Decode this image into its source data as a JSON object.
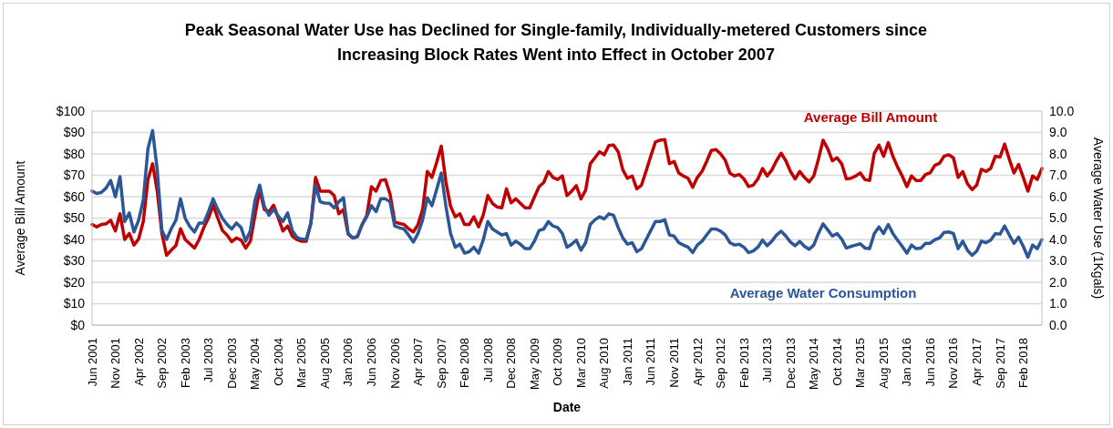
{
  "chart_data": {
    "type": "line",
    "title": "Peak Seasonal Water Use has Declined for Single-family, Individually-metered Customers since Increasing Block Rates Went into Effect in October 2007",
    "xlabel": "Date",
    "ylabel": "Average Bill Amount",
    "y2label": "Average Water Use (1Kgals)",
    "categories": [
      "Jun 2001",
      null,
      null,
      null,
      null,
      "Nov 2001",
      null,
      null,
      null,
      null,
      "Apr 2002",
      null,
      null,
      null,
      null,
      "Sep 2002",
      null,
      null,
      null,
      null,
      "Feb 2003",
      null,
      null,
      null,
      null,
      "Jul 2003",
      null,
      null,
      null,
      null,
      "Dec 2003",
      null,
      null,
      null,
      null,
      "May 2004",
      null,
      null,
      null,
      null,
      "Oct 2004",
      null,
      null,
      null,
      null,
      "Mar 2005",
      null,
      null,
      null,
      null,
      "Aug 2005",
      null,
      null,
      null,
      null,
      "Jan 2006",
      null,
      null,
      null,
      null,
      "Jun 2006",
      null,
      null,
      null,
      null,
      "Nov 2006",
      null,
      null,
      null,
      null,
      "Apr 2007",
      null,
      null,
      null,
      null,
      "Sep 2007",
      null,
      null,
      null,
      null,
      "Feb 2008",
      null,
      null,
      null,
      null,
      "Jul 2008",
      null,
      null,
      null,
      null,
      "Dec 2008",
      null,
      null,
      null,
      null,
      "May 2009",
      null,
      null,
      null,
      null,
      "Oct 2009",
      null,
      null,
      null,
      null,
      "Mar 2010",
      null,
      null,
      null,
      null,
      "Aug 2010",
      null,
      null,
      null,
      null,
      "Jan 2011",
      null,
      null,
      null,
      null,
      "Jun 2011",
      null,
      null,
      null,
      null,
      "Nov 2011",
      null,
      null,
      null,
      null,
      "Apr 2012",
      null,
      null,
      null,
      null,
      "Sep 2012",
      null,
      null,
      null,
      null,
      "Feb 2013",
      null,
      null,
      null,
      null,
      "Jul 2013",
      null,
      null,
      null,
      null,
      "Dec 2013",
      null,
      null,
      null,
      null,
      "May 2014",
      null,
      null,
      null,
      null,
      "Oct 2014",
      null,
      null,
      null,
      null,
      "Mar 2015",
      null,
      null,
      null,
      null,
      "Aug 2015",
      null,
      null,
      null,
      null,
      "Jan 2016",
      null,
      null,
      null,
      null,
      "Jun 2016",
      null,
      null,
      null,
      null,
      "Nov 2016",
      null,
      null,
      null,
      null,
      "Apr 2017",
      null,
      null,
      null,
      null,
      "Sep 2017",
      null,
      null,
      null,
      null,
      "Feb 2018",
      null,
      null,
      null,
      null
    ],
    "series": [
      {
        "name": "Average Bill Amount",
        "color": "#c00000",
        "values": [
          47,
          45.9,
          47,
          47.3,
          49,
          44,
          52,
          40,
          42.8,
          37.4,
          40.2,
          48.4,
          68,
          75.4,
          62.6,
          42.8,
          32.6,
          35,
          37.1,
          45,
          40,
          38,
          36,
          40,
          45.6,
          50,
          56,
          50,
          44.2,
          42,
          39,
          40.7,
          39.7,
          36,
          39.2,
          51.3,
          63.3,
          54,
          53,
          56,
          50,
          44,
          46.3,
          41.6,
          40,
          39.2,
          39.2,
          47.7,
          69,
          62.6,
          62.6,
          62.6,
          60.5,
          52,
          54,
          42.5,
          40.7,
          41.4,
          47,
          51.3,
          64.7,
          62.6,
          67.6,
          68,
          61.2,
          48.4,
          47.5,
          47,
          45,
          43.5,
          47,
          54,
          71.8,
          69,
          76,
          83.6,
          66.9,
          55.5,
          50.6,
          52,
          47,
          47,
          50.6,
          45.9,
          51.3,
          60.5,
          56.9,
          55.2,
          54.8,
          63.7,
          57.2,
          59,
          56.9,
          54.8,
          54.8,
          59.8,
          64.7,
          66.6,
          71.8,
          69,
          68,
          69.7,
          60.5,
          62.6,
          65.2,
          59,
          63,
          75.4,
          78.2,
          81,
          79.6,
          83.9,
          84.1,
          81,
          72.5,
          68.6,
          69.7,
          63.7,
          65.4,
          72,
          79,
          85.6,
          86.4,
          86.7,
          75.4,
          76.5,
          71.1,
          69.7,
          68.6,
          64.4,
          69,
          71.8,
          76.5,
          81.6,
          82,
          80,
          77,
          71,
          69.7,
          70.4,
          68.3,
          64.7,
          65.4,
          68.3,
          73.2,
          69.7,
          72.5,
          76.8,
          80.3,
          76.8,
          71.8,
          68.3,
          71.8,
          69,
          66.9,
          69.7,
          77.5,
          86.4,
          82.4,
          76.8,
          78.2,
          75.4,
          68.3,
          68.6,
          69.7,
          71.1,
          68,
          67.6,
          80.3,
          84.1,
          78.9,
          85.3,
          78.9,
          73.9,
          69.7,
          64.7,
          69.7,
          67.6,
          67.6,
          70.4,
          71.1,
          74.6,
          75.6,
          78.9,
          79.6,
          78.2,
          69,
          71.8,
          66.1,
          63.3,
          65.4,
          72.8,
          71.8,
          73.2,
          78.9,
          78.5,
          84.6,
          77.5,
          71.1,
          75.1,
          69,
          62.6,
          69.7,
          68,
          73.2
        ]
      },
      {
        "name": "Average Water Consumption",
        "axis": "y2",
        "color": "#2b5797",
        "values": [
          6.26,
          6.15,
          6.2,
          6.4,
          6.76,
          6.0,
          6.94,
          4.84,
          5.24,
          4.35,
          4.9,
          5.84,
          8.24,
          9.09,
          7.25,
          4.42,
          4.0,
          4.5,
          4.9,
          5.9,
          4.99,
          4.6,
          4.35,
          4.77,
          4.77,
          5.3,
          5.9,
          5.4,
          4.99,
          4.7,
          4.49,
          4.77,
          4.56,
          3.92,
          4.42,
          5.84,
          6.54,
          5.55,
          5.13,
          5.41,
          5.1,
          4.84,
          5.24,
          4.42,
          4.1,
          4.02,
          4.0,
          4.77,
          6.54,
          5.76,
          5.7,
          5.69,
          5.48,
          5.76,
          5.95,
          4.28,
          4.07,
          4.14,
          4.7,
          5.06,
          5.58,
          5.3,
          5.9,
          5.9,
          5.76,
          4.63,
          4.55,
          4.49,
          4.2,
          3.88,
          4.28,
          4.92,
          5.95,
          5.58,
          6.33,
          7.11,
          5.55,
          4.28,
          3.64,
          3.78,
          3.36,
          3.43,
          3.64,
          3.36,
          3.97,
          4.84,
          4.49,
          4.35,
          4.21,
          4.28,
          3.74,
          3.92,
          3.78,
          3.57,
          3.57,
          3.92,
          4.42,
          4.49,
          4.84,
          4.63,
          4.56,
          4.28,
          3.64,
          3.78,
          3.97,
          3.5,
          3.85,
          4.7,
          4.92,
          5.06,
          4.96,
          5.2,
          5.13,
          4.56,
          4.07,
          3.78,
          3.85,
          3.43,
          3.57,
          4.0,
          4.42,
          4.84,
          4.84,
          4.92,
          4.21,
          4.16,
          3.85,
          3.74,
          3.64,
          3.39,
          3.74,
          3.92,
          4.21,
          4.49,
          4.49,
          4.39,
          4.21,
          3.85,
          3.74,
          3.78,
          3.64,
          3.39,
          3.46,
          3.64,
          3.97,
          3.71,
          3.92,
          4.21,
          4.39,
          4.16,
          3.88,
          3.71,
          3.91,
          3.68,
          3.54,
          3.74,
          4.28,
          4.73,
          4.45,
          4.16,
          4.28,
          4.02,
          3.6,
          3.68,
          3.74,
          3.8,
          3.6,
          3.57,
          4.28,
          4.59,
          4.28,
          4.7,
          4.28,
          3.97,
          3.68,
          3.36,
          3.74,
          3.57,
          3.6,
          3.82,
          3.82,
          3.99,
          4.07,
          4.33,
          4.35,
          4.28,
          3.57,
          3.92,
          3.5,
          3.26,
          3.46,
          3.92,
          3.85,
          3.97,
          4.28,
          4.25,
          4.63,
          4.21,
          3.82,
          4.11,
          3.68,
          3.17,
          3.74,
          3.57,
          3.99
        ]
      }
    ],
    "ylim": [
      0,
      100
    ],
    "yticks": [
      {
        "value": 0,
        "label": "$0"
      },
      {
        "value": 10,
        "label": "$10"
      },
      {
        "value": 20,
        "label": "$20"
      },
      {
        "value": 30,
        "label": "$30"
      },
      {
        "value": 40,
        "label": "$40"
      },
      {
        "value": 50,
        "label": "$50"
      },
      {
        "value": 60,
        "label": "$60"
      },
      {
        "value": 70,
        "label": "$70"
      },
      {
        "value": 80,
        "label": "$80"
      },
      {
        "value": 90,
        "label": "$90"
      },
      {
        "value": 100,
        "label": "$100"
      }
    ],
    "y2lim": [
      0,
      10
    ],
    "y2ticks": [
      {
        "value": 0,
        "label": "0.0"
      },
      {
        "value": 1,
        "label": "1.0"
      },
      {
        "value": 2,
        "label": "2.0"
      },
      {
        "value": 3,
        "label": "3.0"
      },
      {
        "value": 4,
        "label": "4.0"
      },
      {
        "value": 5,
        "label": "5.0"
      },
      {
        "value": 6,
        "label": "6.0"
      },
      {
        "value": 7,
        "label": "7.0"
      },
      {
        "value": 8,
        "label": "8.0"
      },
      {
        "value": 9,
        "label": "9.0"
      },
      {
        "value": 10,
        "label": "10.0"
      }
    ],
    "grid": "y",
    "legend": false,
    "marker": "none",
    "line_style": "solid"
  }
}
